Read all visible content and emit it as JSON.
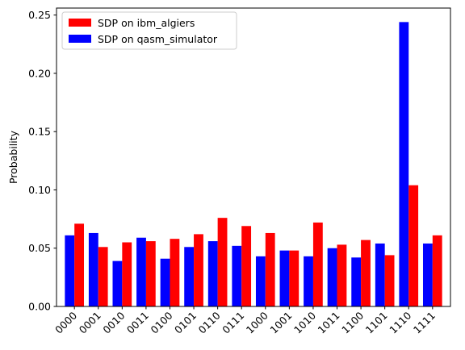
{
  "chart_data": {
    "type": "bar",
    "categories": [
      "0000",
      "0001",
      "0010",
      "0011",
      "0100",
      "0101",
      "0110",
      "0111",
      "1000",
      "1001",
      "1010",
      "1011",
      "1100",
      "1101",
      "1110",
      "1111"
    ],
    "series": [
      {
        "name": "SDP on qasm_simulator",
        "color": "#0000ff",
        "values": [
          0.061,
          0.063,
          0.039,
          0.059,
          0.041,
          0.051,
          0.056,
          0.052,
          0.043,
          0.048,
          0.043,
          0.05,
          0.042,
          0.054,
          0.244,
          0.054
        ]
      },
      {
        "name": "SDP on ibm_algiers",
        "color": "#ff0000",
        "values": [
          0.071,
          0.051,
          0.055,
          0.056,
          0.058,
          0.062,
          0.076,
          0.069,
          0.063,
          0.048,
          0.072,
          0.053,
          0.057,
          0.044,
          0.104,
          0.061
        ]
      }
    ],
    "legend_order": [
      1,
      0
    ],
    "legend_position": "top-left",
    "ylabel": "Probability",
    "xlabel": "",
    "ylim": [
      0,
      0.256
    ],
    "yticks": [
      "0.00",
      "0.05",
      "0.10",
      "0.15",
      "0.20",
      "0.25"
    ],
    "grid": false
  }
}
